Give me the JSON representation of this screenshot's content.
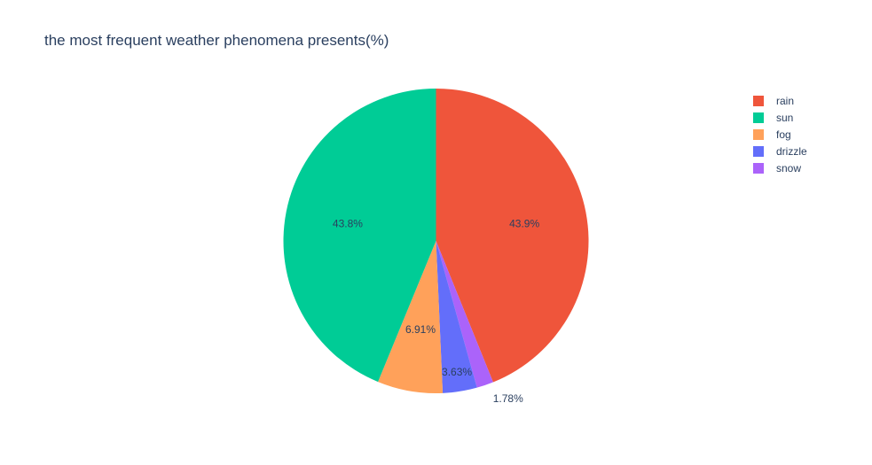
{
  "chart_data": {
    "type": "pie",
    "title": "the most frequent weather phenomena presents(%)",
    "slices": [
      {
        "label": "rain",
        "value": 43.9,
        "text": "43.9%",
        "color": "#EF553B"
      },
      {
        "label": "snow",
        "value": 1.78,
        "text": "1.78%",
        "color": "#AB63FA"
      },
      {
        "label": "drizzle",
        "value": 3.63,
        "text": "3.63%",
        "color": "#636EFA"
      },
      {
        "label": "fog",
        "value": 6.91,
        "text": "6.91%",
        "color": "#FFA15A"
      },
      {
        "label": "sun",
        "value": 43.8,
        "text": "43.8%",
        "color": "#00CC96"
      }
    ],
    "legend": {
      "placement": "top-right",
      "order": [
        "rain",
        "sun",
        "fog",
        "drizzle",
        "snow"
      ]
    }
  }
}
